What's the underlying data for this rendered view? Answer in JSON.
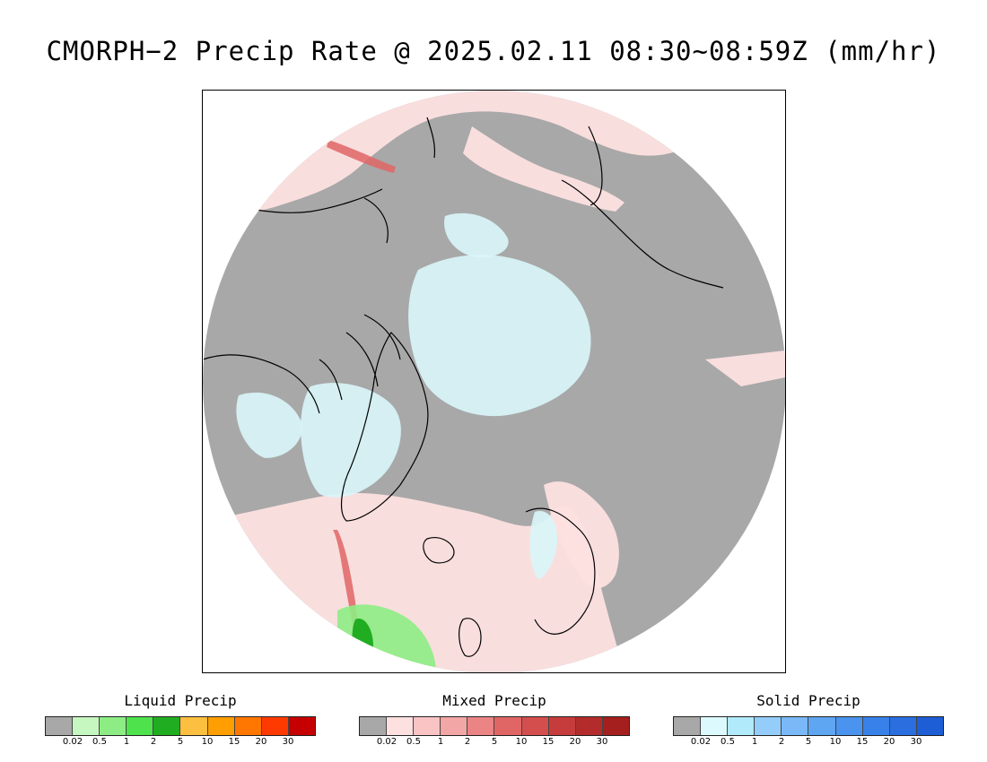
{
  "title": "CMORPH−2 Precip Rate @ 2025.02.11 08:30~08:59Z (mm/hr)",
  "map": {
    "background_gray": "#a8a8a8",
    "mixed_light": "#fde0e0",
    "solid_light": "#d9f6fa",
    "coast_color": "#000000"
  },
  "legends": [
    {
      "key": "liquid",
      "title": "Liquid Precip",
      "colors": [
        "#a8a8a8",
        "#c6f7c0",
        "#8ded84",
        "#4ee24c",
        "#21ad22",
        "#fdbf3f",
        "#ff9e00",
        "#ff7700",
        "#ff3a00",
        "#c60000"
      ],
      "ticks": [
        "0.02",
        "0.5",
        "1",
        "2",
        "5",
        "10",
        "15",
        "20",
        "30"
      ]
    },
    {
      "key": "mixed",
      "title": "Mixed Precip",
      "colors": [
        "#a8a8a8",
        "#fde0e0",
        "#fbc4c4",
        "#f2a6a6",
        "#eb8484",
        "#e06666",
        "#d44e4e",
        "#c63c3c",
        "#b42b2b",
        "#a51f1f"
      ],
      "ticks": [
        "0.02",
        "0.5",
        "1",
        "2",
        "5",
        "10",
        "15",
        "20",
        "30"
      ]
    },
    {
      "key": "solid",
      "title": "Solid Precip",
      "colors": [
        "#a8a8a8",
        "#dcfafd",
        "#b1eafb",
        "#94cdfa",
        "#7ab8f7",
        "#5ea5f2",
        "#4a93ee",
        "#3881e8",
        "#2a6ee0",
        "#1d5dd6"
      ],
      "ticks": [
        "0.02",
        "0.5",
        "1",
        "2",
        "5",
        "10",
        "15",
        "20",
        "30"
      ]
    }
  ]
}
